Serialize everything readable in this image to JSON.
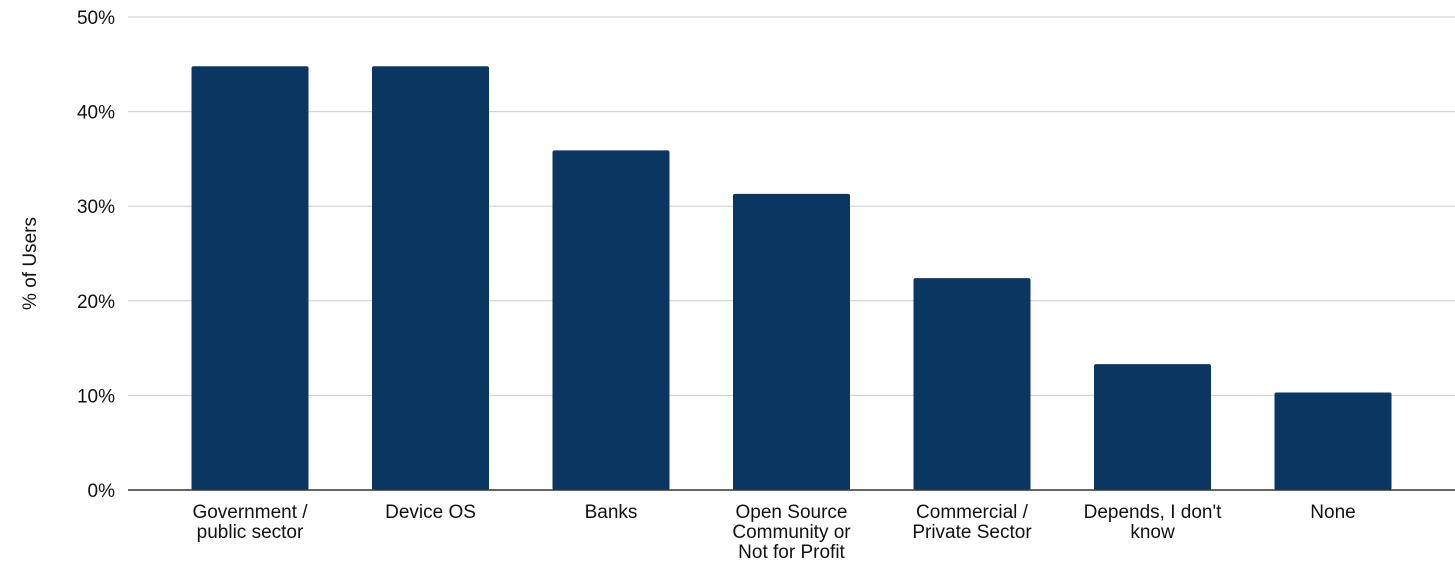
{
  "chart_data": {
    "type": "bar",
    "ylabel": "% of Users",
    "xlabel": "",
    "ylim": [
      0,
      50
    ],
    "yticks": [
      0,
      10,
      20,
      30,
      40,
      50
    ],
    "ytick_labels": [
      "0%",
      "10%",
      "20%",
      "30%",
      "40%",
      "50%"
    ],
    "grid": true,
    "categories": [
      [
        "Government /",
        "public sector"
      ],
      [
        "Device OS"
      ],
      [
        "Banks"
      ],
      [
        "Open Source",
        "Community or",
        "Not for Profit"
      ],
      [
        "Commercial /",
        "Private Sector"
      ],
      [
        "Depends, I don't",
        "know"
      ],
      [
        "None"
      ]
    ],
    "values": [
      44.8,
      44.8,
      35.9,
      31.3,
      22.4,
      13.3,
      10.3
    ],
    "colors": {
      "bar": "#0a3661"
    }
  }
}
